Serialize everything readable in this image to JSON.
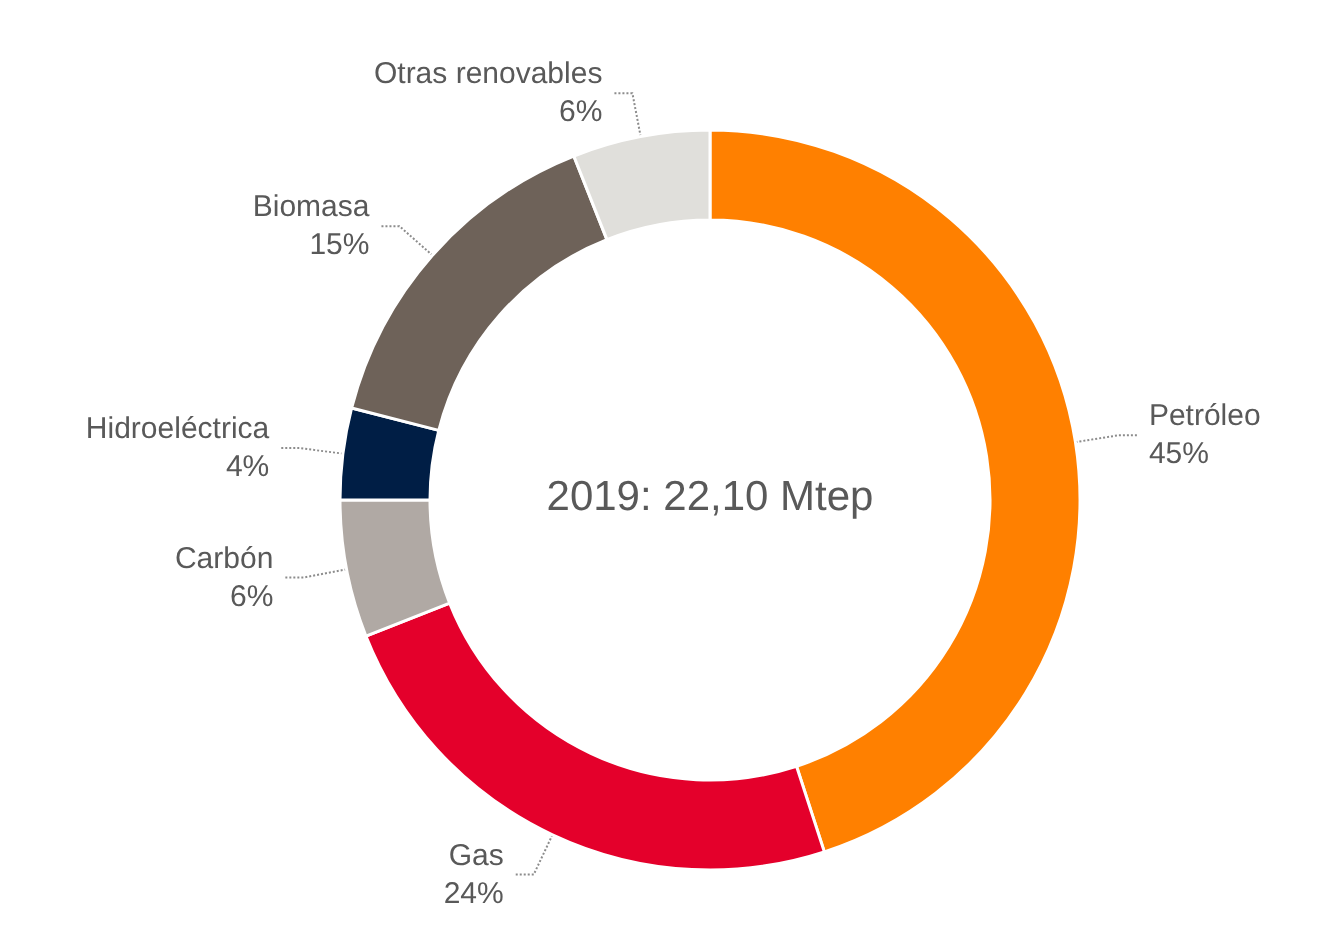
{
  "chart_data": {
    "type": "donut",
    "categories": [
      "Petróleo",
      "Gas",
      "Carbón",
      "Hidroeléctrica",
      "Biomasa",
      "Otras renovables"
    ],
    "values": [
      45,
      24,
      6,
      4,
      15,
      6
    ],
    "value_labels": [
      "45%",
      "24%",
      "6%",
      "4%",
      "15%",
      "6%"
    ],
    "colors": [
      "#ff8000",
      "#e4002b",
      "#b0a9a4",
      "#001e45",
      "#6e6259",
      "#e0dfdb"
    ],
    "annotations": [
      "2019: 22,10 Mtep"
    ],
    "legend": false
  }
}
